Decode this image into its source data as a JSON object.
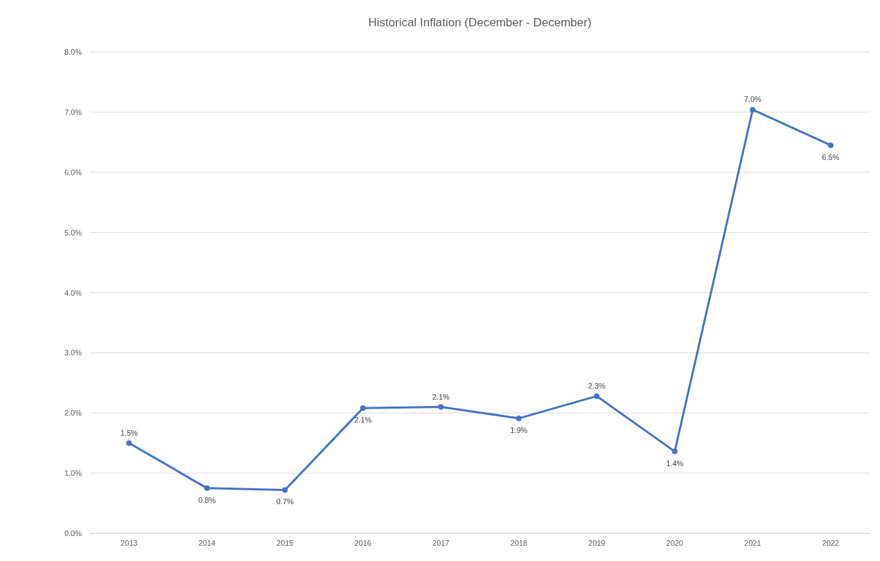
{
  "chart_data": {
    "type": "line",
    "title": "Historical Inflation (December - December)",
    "categories": [
      "2013",
      "2014",
      "2015",
      "2016",
      "2017",
      "2018",
      "2019",
      "2020",
      "2021",
      "2022"
    ],
    "series": [
      {
        "color": "#4472c4",
        "values": [
          1.5,
          0.75,
          0.72,
          2.08,
          2.1,
          1.91,
          2.28,
          1.36,
          7.04,
          6.45
        ],
        "value_labels": [
          "1.5%",
          "0.8%",
          "0.7%",
          "2.1%",
          "2.1%",
          "1.9%",
          "2.3%",
          "1.4%",
          "7.0%",
          "6.5%"
        ]
      }
    ],
    "ylim": [
      0,
      8
    ],
    "yticks": [
      {
        "value": 0,
        "label": "0.0%"
      },
      {
        "value": 1,
        "label": "1.0%"
      },
      {
        "value": 2,
        "label": "2.0%"
      },
      {
        "value": 3,
        "label": "3.0%"
      },
      {
        "value": 4,
        "label": "4.0%"
      },
      {
        "value": 5,
        "label": "5.0%"
      },
      {
        "value": 6,
        "label": "6.0%"
      },
      {
        "value": 7,
        "label": "7.0%"
      },
      {
        "value": 8,
        "label": "8.0%"
      }
    ],
    "grid": "y",
    "marker": "circle",
    "line_style": "solid"
  }
}
